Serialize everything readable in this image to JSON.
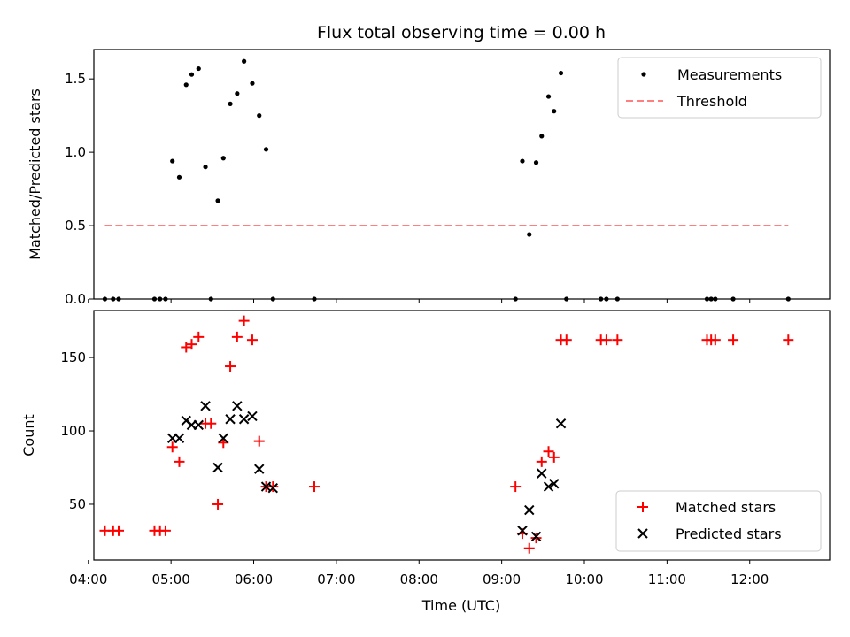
{
  "chart_data": [
    {
      "type": "scatter",
      "title": "Flux total observing time = 0.00 h",
      "xlabel": "",
      "ylabel": "Matched/Predicted stars",
      "xlim": [
        "04:04",
        "12:58"
      ],
      "ylim": [
        0,
        1.7
      ],
      "yticks": [
        "0.0",
        "0.5",
        "1.0",
        "1.5"
      ],
      "legend_position": "top-right",
      "series": [
        {
          "name": "Measurements",
          "marker": "dot",
          "color": "#000000",
          "points": [
            [
              "04:12",
              0.0
            ],
            [
              "04:18",
              0.0
            ],
            [
              "04:22",
              0.0
            ],
            [
              "04:48",
              0.0
            ],
            [
              "04:52",
              0.0
            ],
            [
              "04:56",
              0.0
            ],
            [
              "05:01",
              0.94
            ],
            [
              "05:06",
              0.83
            ],
            [
              "05:11",
              1.46
            ],
            [
              "05:15",
              1.53
            ],
            [
              "05:20",
              1.57
            ],
            [
              "05:25",
              0.9
            ],
            [
              "05:29",
              0.0
            ],
            [
              "05:34",
              0.67
            ],
            [
              "05:38",
              0.96
            ],
            [
              "05:43",
              1.33
            ],
            [
              "05:48",
              1.4
            ],
            [
              "05:53",
              1.62
            ],
            [
              "05:59",
              1.47
            ],
            [
              "06:04",
              1.25
            ],
            [
              "06:09",
              1.02
            ],
            [
              "06:14",
              0.0
            ],
            [
              "06:44",
              0.0
            ],
            [
              "09:10",
              0.0
            ],
            [
              "09:15",
              0.94
            ],
            [
              "09:20",
              0.44
            ],
            [
              "09:25",
              0.93
            ],
            [
              "09:29",
              1.11
            ],
            [
              "09:34",
              1.38
            ],
            [
              "09:38",
              1.28
            ],
            [
              "09:43",
              1.54
            ],
            [
              "09:47",
              0.0
            ],
            [
              "10:12",
              0.0
            ],
            [
              "10:16",
              0.0
            ],
            [
              "10:24",
              0.0
            ],
            [
              "11:29",
              0.0
            ],
            [
              "11:32",
              0.0
            ],
            [
              "11:35",
              0.0
            ],
            [
              "11:48",
              0.0
            ],
            [
              "12:28",
              0.0
            ]
          ]
        },
        {
          "name": "Threshold",
          "type": "line",
          "style": "dashed",
          "color": "#ff7f7f",
          "points": [
            [
              "04:12",
              0.5
            ],
            [
              "12:28",
              0.5
            ]
          ]
        }
      ]
    },
    {
      "type": "scatter",
      "title": "",
      "xlabel": "Time (UTC)",
      "ylabel": "Count",
      "xlim": [
        "04:04",
        "12:58"
      ],
      "ylim": [
        12,
        182
      ],
      "xticks": [
        "04:00",
        "05:00",
        "06:00",
        "07:00",
        "08:00",
        "09:00",
        "10:00",
        "11:00",
        "12:00"
      ],
      "yticks": [
        "50",
        "100",
        "150"
      ],
      "legend_position": "bottom-right",
      "series": [
        {
          "name": "Matched stars",
          "marker": "plus",
          "color": "#ff0000",
          "points": [
            [
              "04:12",
              32
            ],
            [
              "04:18",
              32
            ],
            [
              "04:22",
              32
            ],
            [
              "04:48",
              32
            ],
            [
              "04:52",
              32
            ],
            [
              "04:56",
              32
            ],
            [
              "05:01",
              89
            ],
            [
              "05:06",
              79
            ],
            [
              "05:11",
              157
            ],
            [
              "05:15",
              159
            ],
            [
              "05:20",
              164
            ],
            [
              "05:25",
              105
            ],
            [
              "05:29",
              105
            ],
            [
              "05:34",
              50
            ],
            [
              "05:38",
              92
            ],
            [
              "05:43",
              144
            ],
            [
              "05:48",
              164
            ],
            [
              "05:53",
              175
            ],
            [
              "05:59",
              162
            ],
            [
              "06:04",
              93
            ],
            [
              "06:09",
              62
            ],
            [
              "06:14",
              62
            ],
            [
              "06:44",
              62
            ],
            [
              "09:10",
              62
            ],
            [
              "09:15",
              30
            ],
            [
              "09:20",
              20
            ],
            [
              "09:25",
              27
            ],
            [
              "09:29",
              79
            ],
            [
              "09:34",
              86
            ],
            [
              "09:38",
              82
            ],
            [
              "09:43",
              162
            ],
            [
              "09:47",
              162
            ],
            [
              "10:12",
              162
            ],
            [
              "10:16",
              162
            ],
            [
              "10:24",
              162
            ],
            [
              "11:29",
              162
            ],
            [
              "11:32",
              162
            ],
            [
              "11:35",
              162
            ],
            [
              "11:48",
              162
            ],
            [
              "12:28",
              162
            ]
          ]
        },
        {
          "name": "Predicted stars",
          "marker": "x",
          "color": "#000000",
          "points": [
            [
              "05:01",
              95
            ],
            [
              "05:06",
              95
            ],
            [
              "05:11",
              107
            ],
            [
              "05:15",
              104
            ],
            [
              "05:20",
              104
            ],
            [
              "05:25",
              117
            ],
            [
              "05:34",
              75
            ],
            [
              "05:38",
              95
            ],
            [
              "05:43",
              108
            ],
            [
              "05:48",
              117
            ],
            [
              "05:53",
              108
            ],
            [
              "05:59",
              110
            ],
            [
              "06:04",
              74
            ],
            [
              "06:09",
              62
            ],
            [
              "06:14",
              61
            ],
            [
              "09:15",
              32
            ],
            [
              "09:20",
              46
            ],
            [
              "09:25",
              28
            ],
            [
              "09:29",
              71
            ],
            [
              "09:34",
              62
            ],
            [
              "09:38",
              64
            ],
            [
              "09:43",
              105
            ]
          ]
        }
      ]
    }
  ]
}
